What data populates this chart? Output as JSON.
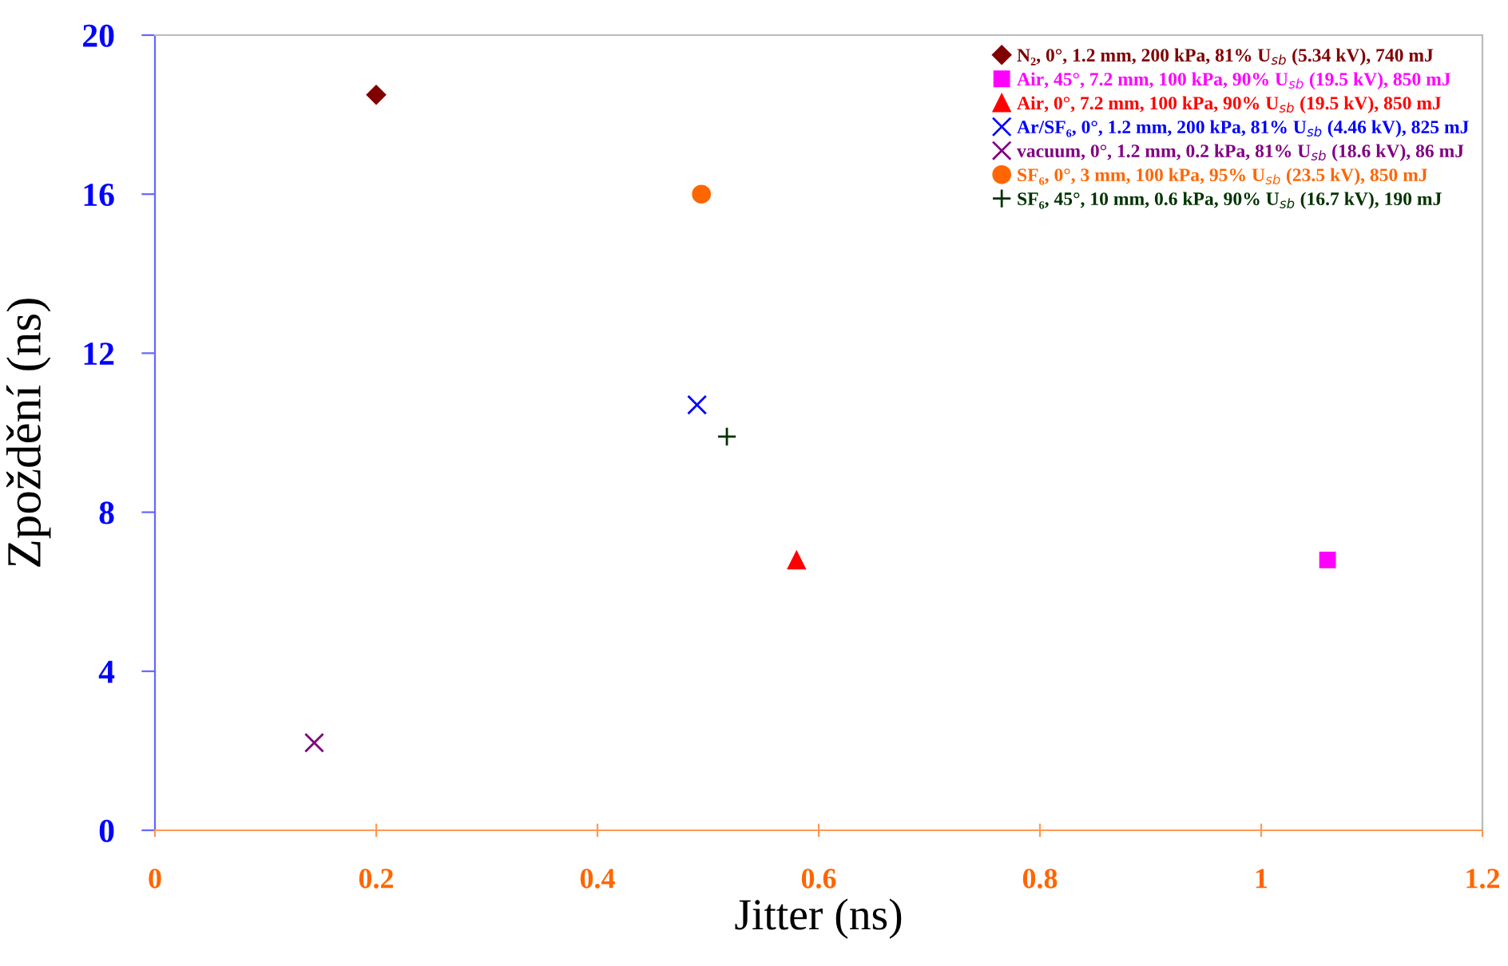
{
  "chart_data": {
    "type": "scatter",
    "xlabel": "Jitter (ns)",
    "ylabel": "Zpoždění (ns)",
    "xlim": [
      0,
      1.2
    ],
    "xticks": [
      0,
      0.2,
      0.4,
      0.6,
      0.8,
      1,
      1.2
    ],
    "ylim": [
      0,
      20
    ],
    "yticks": [
      0,
      4,
      8,
      12,
      16,
      20
    ],
    "grid": false,
    "legend": "top right",
    "series": [
      {
        "name": "N₂, 0°, 1.2 mm, 200 kPa, 81% U$_{sb}$ (5.34 kV), 740 mJ",
        "color": "#800000",
        "marker": "diamond",
        "x": [
          0.2
        ],
        "values": [
          18.5
        ]
      },
      {
        "name": "Air, 45°, 7.2 mm, 100 kPa, 90% U$_{sb}$ (19.5 kV), 850 mJ",
        "color": "#ff00ff",
        "marker": "square",
        "x": [
          1.06
        ],
        "values": [
          6.8
        ]
      },
      {
        "name": "Air, 0°, 7.2 mm, 100 kPa, 90% U$_{sb}$ (19.5 kV), 850 mJ",
        "color": "#ff0000",
        "marker": "triangle",
        "x": [
          0.58
        ],
        "values": [
          6.8
        ]
      },
      {
        "name": "Ar/SF₆, 0°, 1.2 mm, 200 kPa, 81% U$_{sb}$ (4.46 kV), 825 mJ",
        "color": "#0000ff",
        "marker": "cross",
        "x": [
          0.49
        ],
        "values": [
          10.7
        ]
      },
      {
        "name": "vacuum, 0°, 1.2 mm, 0.2 kPa, 81% U$_{sb}$ (18.6 kV), 86 mJ",
        "color": "#800080",
        "marker": "cross",
        "x": [
          0.144
        ],
        "values": [
          2.2
        ]
      },
      {
        "name": "SF₆, 0°, 3 mm, 100 kPa, 95% U$_{sb}$ (23.5 kV), 850 mJ",
        "color": "#ff6600",
        "marker": "circle",
        "x": [
          0.494
        ],
        "values": [
          16.0
        ]
      },
      {
        "name": "SF₆, 45°, 10 mm, 0.6 kPa, 90% U$_{sb}$ (16.7 kV), 190 mJ",
        "color": "#003300",
        "marker": "plus",
        "x": [
          0.517
        ],
        "values": [
          9.9
        ]
      }
    ]
  }
}
